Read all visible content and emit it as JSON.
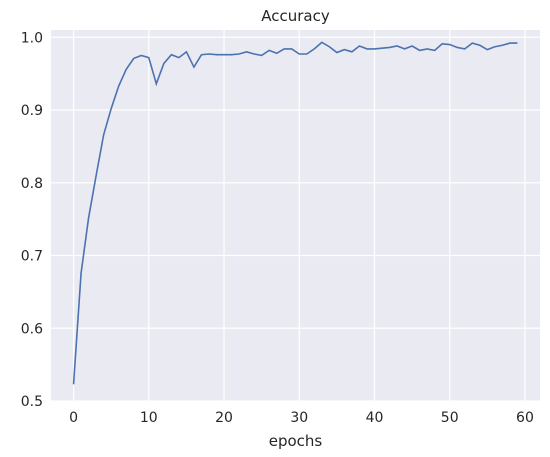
{
  "chart_data": {
    "type": "line",
    "title": "Accuracy",
    "xlabel": "epochs",
    "ylabel": "",
    "xlim": [
      -3,
      62
    ],
    "ylim": [
      0.5,
      1.01
    ],
    "xticks": [
      0,
      10,
      20,
      30,
      40,
      50,
      60
    ],
    "yticks": [
      0.5,
      0.6,
      0.7,
      0.8,
      0.9,
      1.0
    ],
    "xtick_labels": [
      "0",
      "10",
      "20",
      "30",
      "40",
      "50",
      "60"
    ],
    "ytick_labels": [
      "0.5",
      "0.6",
      "0.7",
      "0.8",
      "0.9",
      "1.0"
    ],
    "grid": true,
    "legend": "none",
    "colors": {
      "background": "#eaeaf2",
      "grid": "#ffffff",
      "line": "#4c72b0"
    },
    "series": [
      {
        "x": [
          0,
          1,
          2,
          3,
          4,
          5,
          6,
          7,
          8,
          9,
          10,
          11,
          12,
          13,
          14,
          15,
          16,
          17,
          18,
          19,
          20,
          21,
          22,
          23,
          24,
          25,
          26,
          27,
          28,
          29,
          30,
          31,
          32,
          33,
          34,
          35,
          36,
          37,
          38,
          39,
          40,
          41,
          42,
          43,
          44,
          45,
          46,
          47,
          48,
          49,
          50,
          51,
          52,
          53,
          54,
          55,
          56,
          57,
          58,
          59
        ],
        "values": [
          0.523,
          0.676,
          0.752,
          0.81,
          0.866,
          0.902,
          0.933,
          0.956,
          0.971,
          0.975,
          0.972,
          0.936,
          0.964,
          0.976,
          0.972,
          0.98,
          0.959,
          0.976,
          0.977,
          0.976,
          0.976,
          0.976,
          0.977,
          0.98,
          0.977,
          0.975,
          0.982,
          0.978,
          0.984,
          0.984,
          0.977,
          0.977,
          0.984,
          0.993,
          0.987,
          0.979,
          0.983,
          0.98,
          0.988,
          0.984,
          0.984,
          0.985,
          0.986,
          0.988,
          0.984,
          0.988,
          0.982,
          0.984,
          0.982,
          0.991,
          0.99,
          0.986,
          0.984,
          0.992,
          0.989,
          0.983,
          0.987,
          0.989,
          0.992,
          0.992
        ]
      }
    ]
  }
}
